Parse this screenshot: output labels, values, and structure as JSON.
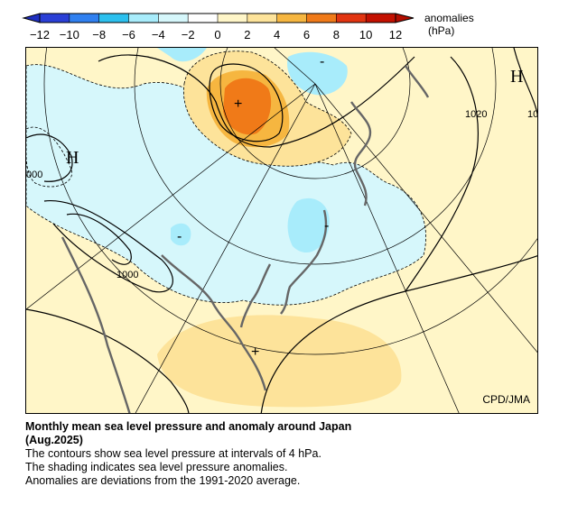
{
  "legend": {
    "title": "anomalies",
    "units": "(hPa)",
    "ticks": [
      "−12",
      "−10",
      "−8",
      "−6",
      "−4",
      "−2",
      "0",
      "2",
      "4",
      "6",
      "8",
      "10",
      "12"
    ],
    "colors": [
      "#2a3fd6",
      "#3080f0",
      "#2cc0ee",
      "#a8ecfb",
      "#d6f7fb",
      "#ffffff",
      "#fff6c8",
      "#fde39a",
      "#f6b640",
      "#f07a18",
      "#e23410",
      "#c31000"
    ]
  },
  "map": {
    "credit": "CPD/JMA",
    "high_labels": [
      "H",
      "H"
    ],
    "isobar_labels": [
      "1020",
      "10",
      "1000",
      "000"
    ],
    "anomaly_signs": [
      "+",
      "-",
      "-",
      "-",
      "+"
    ]
  },
  "caption": {
    "title": "Monthly mean sea level pressure and anomaly around Japan",
    "period": "(Aug.2025)",
    "lines": [
      "The contours show sea level pressure at intervals of 4 hPa.",
      "The shading indicates sea level pressure anomalies.",
      "Anomalies are deviations from the 1991-2020 average."
    ]
  }
}
